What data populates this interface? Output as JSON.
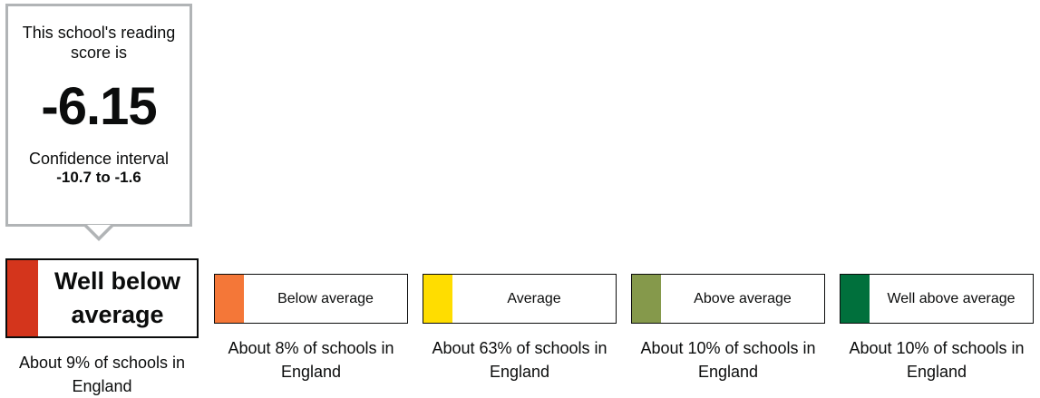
{
  "score_callout": {
    "intro": "This school's reading score is",
    "score": "-6.15",
    "ci_label": "Confidence interval",
    "ci_range": "-10.7 to -1.6"
  },
  "bands": [
    {
      "label": "Well below average",
      "description": "About 9% of schools in England",
      "color": "#d4351c",
      "current": true
    },
    {
      "label": "Below average",
      "description": "About 8% of schools in England",
      "color": "#f47738",
      "current": false
    },
    {
      "label": "Average",
      "description": "About 63% of schools in England",
      "color": "#ffdd00",
      "current": false
    },
    {
      "label": "Above average",
      "description": "About 10% of schools in England",
      "color": "#85994b",
      "current": false
    },
    {
      "label": "Well above average",
      "description": "About 10% of schools in England",
      "color": "#00703c",
      "current": false
    }
  ]
}
